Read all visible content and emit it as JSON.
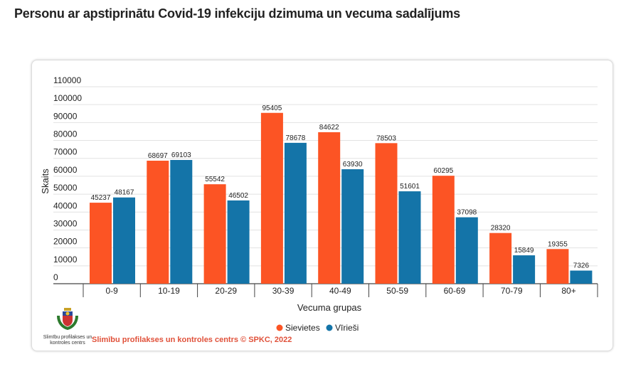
{
  "title": "Personu ar apstiprinātu Covid-19 infekciju dzimuma un vecuma sadalījums",
  "logo_text": "Slimību profilakses un kontroles centrs",
  "credit": "Slimību profilakses un kontroles centrs © SPKC, 2022",
  "chart_data": {
    "type": "bar",
    "title": "",
    "xlabel": "Vecuma grupas",
    "ylabel": "Skaits",
    "ylim": [
      0,
      110000
    ],
    "yticks": [
      0,
      10000,
      20000,
      30000,
      40000,
      50000,
      60000,
      70000,
      80000,
      90000,
      100000,
      110000
    ],
    "grid": true,
    "legend": "bottom",
    "categories": [
      "0-9",
      "10-19",
      "20-29",
      "30-39",
      "40-49",
      "50-59",
      "60-69",
      "70-79",
      "80+"
    ],
    "series": [
      {
        "name": "Sievietes",
        "color": "#fc5424",
        "values": [
          45237,
          68697,
          55542,
          95405,
          84622,
          78503,
          60295,
          28320,
          19355
        ]
      },
      {
        "name": "Vīrieši",
        "color": "#1474a8",
        "values": [
          48167,
          69103,
          46502,
          78678,
          63930,
          51601,
          37098,
          15849,
          7326
        ]
      }
    ]
  }
}
